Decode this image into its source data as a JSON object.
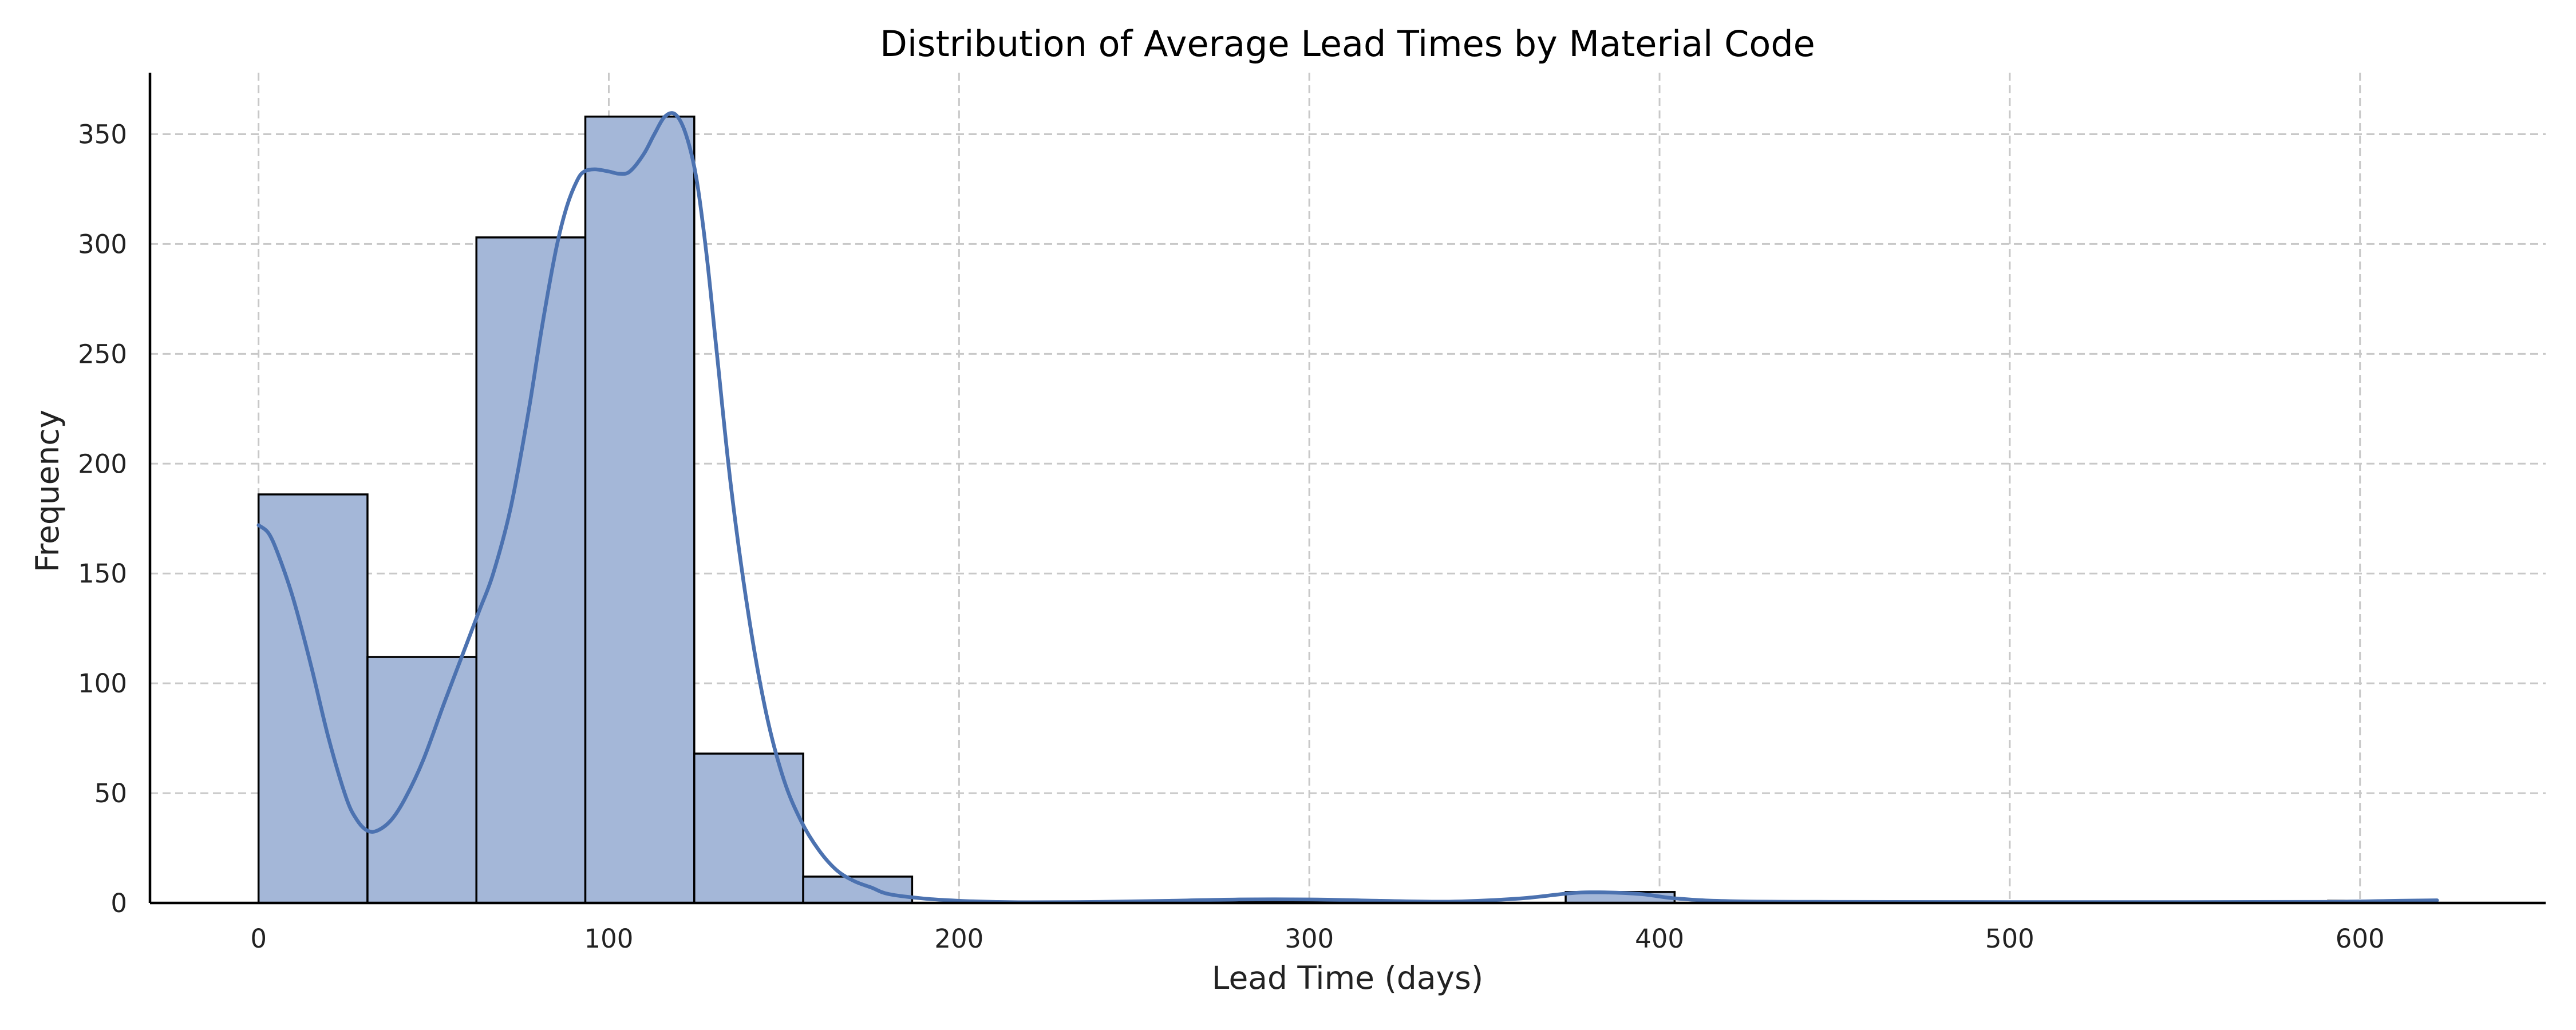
{
  "colors": {
    "bar_fill": "#a4b7d8",
    "bar_edge": "#000000",
    "kde_line": "#4c72b0",
    "grid": "#c8c8c8",
    "background": "#ffffff"
  },
  "chart_data": {
    "type": "bar",
    "title": "Distribution of Average Lead Times by Material Code",
    "xlabel": "Lead Time (days)",
    "ylabel": "Frequency",
    "xlim": [
      -31,
      653
    ],
    "ylim": [
      0,
      378
    ],
    "xticks": [
      0,
      100,
      200,
      300,
      400,
      500,
      600
    ],
    "yticks": [
      0,
      50,
      100,
      150,
      200,
      250,
      300,
      350
    ],
    "grid": true,
    "legend": "none",
    "bins": [
      {
        "x0": 0,
        "x1": 31.1,
        "count": 186
      },
      {
        "x0": 31.1,
        "x1": 62.2,
        "count": 112
      },
      {
        "x0": 62.2,
        "x1": 93.3,
        "count": 303
      },
      {
        "x0": 93.3,
        "x1": 124.4,
        "count": 358
      },
      {
        "x0": 124.4,
        "x1": 155.5,
        "count": 68
      },
      {
        "x0": 155.5,
        "x1": 186.6,
        "count": 12
      },
      {
        "x0": 186.6,
        "x1": 217.7,
        "count": 0
      },
      {
        "x0": 217.7,
        "x1": 248.8,
        "count": 0
      },
      {
        "x0": 248.8,
        "x1": 279.9,
        "count": 1
      },
      {
        "x0": 279.9,
        "x1": 311.0,
        "count": 1
      },
      {
        "x0": 311.0,
        "x1": 342.1,
        "count": 0
      },
      {
        "x0": 342.1,
        "x1": 373.2,
        "count": 0
      },
      {
        "x0": 373.2,
        "x1": 404.3,
        "count": 5
      },
      {
        "x0": 404.3,
        "x1": 435.4,
        "count": 0
      },
      {
        "x0": 435.4,
        "x1": 466.5,
        "count": 0
      },
      {
        "x0": 466.5,
        "x1": 497.6,
        "count": 0
      },
      {
        "x0": 497.6,
        "x1": 528.7,
        "count": 0
      },
      {
        "x0": 528.7,
        "x1": 559.8,
        "count": 0
      },
      {
        "x0": 559.8,
        "x1": 590.9,
        "count": 0
      },
      {
        "x0": 590.9,
        "x1": 622.0,
        "count": 1
      }
    ],
    "kde": {
      "x": [
        0,
        3,
        6,
        10,
        15,
        20,
        25,
        28,
        31,
        34,
        38,
        42,
        47,
        53,
        58,
        63,
        67,
        72,
        77,
        81,
        85,
        88,
        91,
        93,
        96,
        100,
        103,
        106,
        110,
        113,
        116,
        119,
        122,
        125,
        128,
        131,
        135,
        140,
        145,
        150,
        155,
        160,
        165,
        170,
        175,
        180,
        190,
        200,
        210,
        220,
        240,
        260,
        280,
        300,
        320,
        340,
        360,
        375,
        385,
        395,
        405,
        420,
        450,
        500,
        550,
        590,
        610,
        622
      ],
      "y": [
        172,
        168,
        157,
        138,
        108,
        75,
        48,
        38,
        33,
        33,
        38,
        48,
        65,
        91,
        112,
        133,
        150,
        180,
        223,
        263,
        298,
        317,
        329,
        333,
        334,
        333,
        332,
        333,
        341,
        350,
        358,
        359,
        350,
        330,
        294,
        248,
        188,
        130,
        86,
        56,
        37,
        24,
        15,
        10,
        7,
        4,
        2,
        1,
        0.5,
        0.3,
        0.5,
        1,
        1.6,
        1.6,
        1,
        0.6,
        2,
        4.5,
        4.8,
        4,
        2,
        0.8,
        0.5,
        0.4,
        0.4,
        0.5,
        1,
        1.2
      ]
    }
  }
}
